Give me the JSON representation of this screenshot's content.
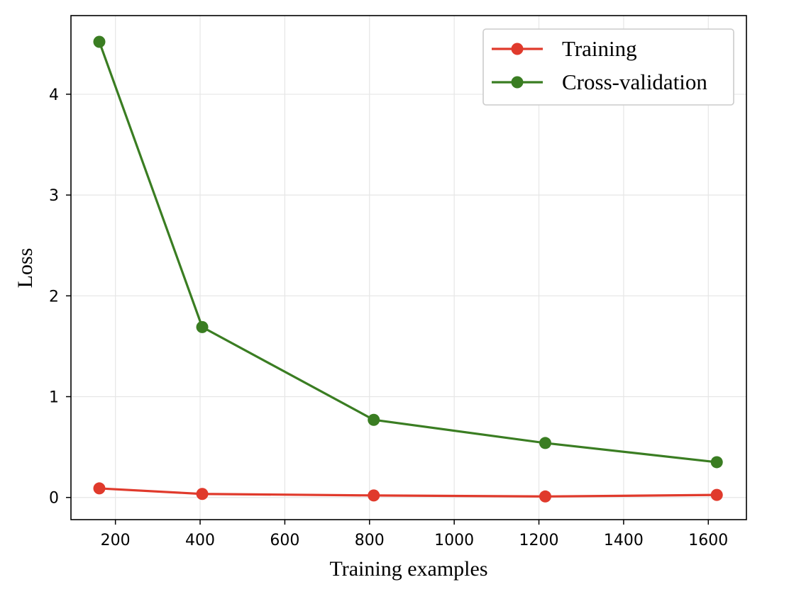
{
  "chart_data": {
    "type": "line",
    "title": "",
    "xlabel": "Training examples",
    "ylabel": "Loss",
    "xlim": [
      95,
      1690
    ],
    "ylim": [
      -0.22,
      4.78
    ],
    "x_ticks": [
      200,
      400,
      600,
      800,
      1000,
      1200,
      1400,
      1600
    ],
    "y_ticks": [
      0,
      1,
      2,
      3,
      4
    ],
    "grid": true,
    "legend_position": "top-right",
    "series": [
      {
        "name": "Training",
        "color": "#e03a2c",
        "x": [
          162,
          405,
          810,
          1215,
          1620
        ],
        "y": [
          0.09,
          0.035,
          0.02,
          0.01,
          0.025
        ]
      },
      {
        "name": "Cross-validation",
        "color": "#3a7d22",
        "x": [
          162,
          405,
          810,
          1215,
          1620
        ],
        "y": [
          4.52,
          1.69,
          0.77,
          0.54,
          0.35
        ]
      }
    ]
  }
}
